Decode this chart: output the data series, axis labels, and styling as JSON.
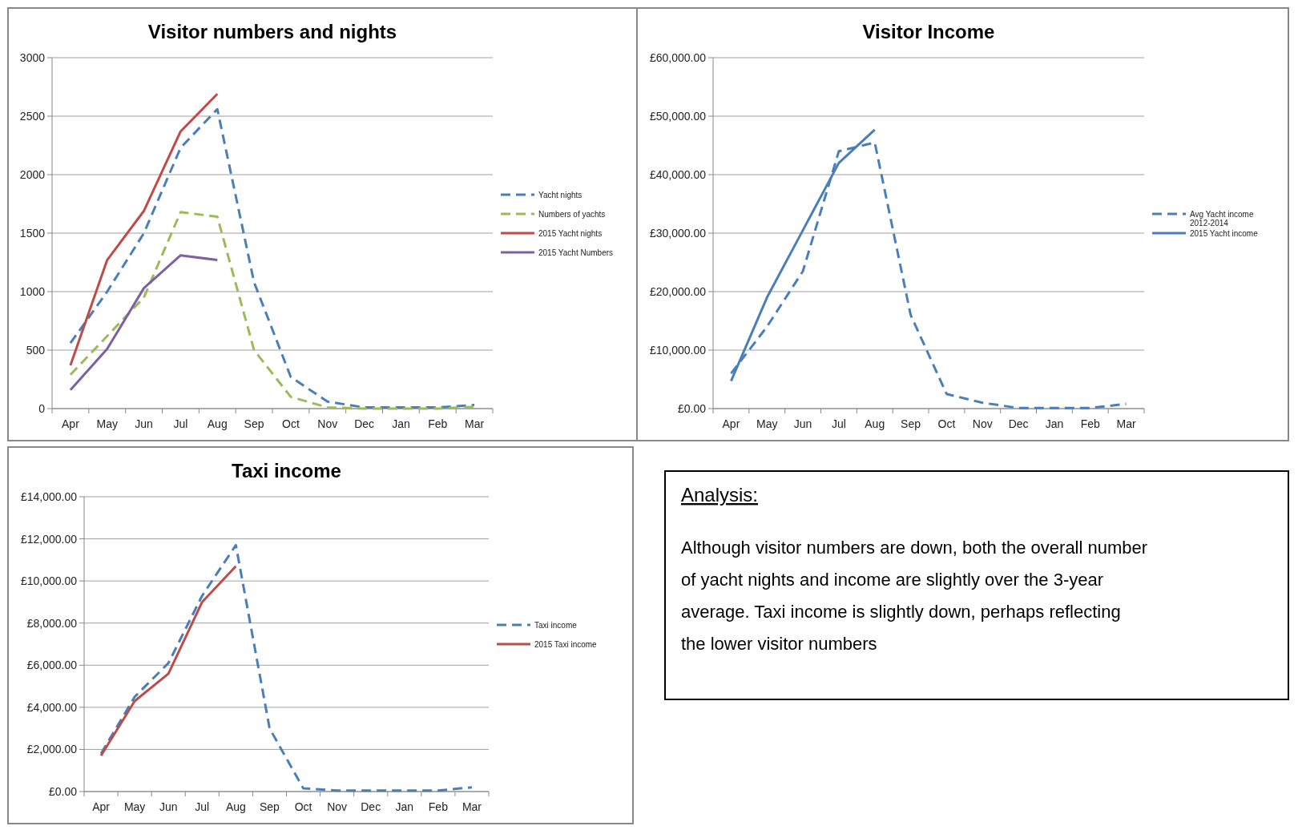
{
  "chart_data": [
    {
      "type": "line",
      "title": "Visitor numbers and nights",
      "categories": [
        "Apr",
        "May",
        "Jun",
        "Jul",
        "Aug",
        "Sep",
        "Oct",
        "Nov",
        "Dec",
        "Jan",
        "Feb",
        "Mar"
      ],
      "ylim": [
        0,
        3000
      ],
      "yticks": [
        0,
        500,
        1000,
        1500,
        2000,
        2500,
        3000
      ],
      "grid": "y",
      "legend": "right",
      "marker": "none",
      "series": [
        {
          "name": "Yacht nights",
          "color": "#4a7ebb",
          "line_style": "dashed",
          "values": [
            560,
            1000,
            1500,
            2230,
            2560,
            1080,
            270,
            60,
            10,
            10,
            10,
            30
          ]
        },
        {
          "name": "Numbers of yachts",
          "color": "#9bbb59",
          "line_style": "dashed",
          "values": [
            290,
            620,
            950,
            1680,
            1640,
            500,
            100,
            10,
            0,
            0,
            0,
            15
          ]
        },
        {
          "name": "2015 Yacht nights",
          "color": "#be4b48",
          "line_style": "solid",
          "values": [
            370,
            1270,
            1690,
            2370,
            2690,
            null,
            null,
            null,
            null,
            null,
            null,
            null
          ]
        },
        {
          "name": "2015 Yacht Numbers",
          "color": "#7d60a0",
          "line_style": "solid",
          "values": [
            160,
            510,
            1030,
            1310,
            1270,
            null,
            null,
            null,
            null,
            null,
            null,
            null
          ]
        }
      ]
    },
    {
      "type": "line",
      "title": "Visitor Income",
      "categories": [
        "Apr",
        "May",
        "Jun",
        "Jul",
        "Aug",
        "Sep",
        "Oct",
        "Nov",
        "Dec",
        "Jan",
        "Feb",
        "Mar"
      ],
      "ylim": [
        0,
        60000
      ],
      "yticks": [
        {
          "value": 0,
          "label": "£0.00"
        },
        {
          "value": 10000,
          "label": "£10,000.00"
        },
        {
          "value": 20000,
          "label": "£20,000.00"
        },
        {
          "value": 30000,
          "label": "£30,000.00"
        },
        {
          "value": 40000,
          "label": "£40,000.00"
        },
        {
          "value": 50000,
          "label": "£50,000.00"
        },
        {
          "value": 60000,
          "label": "£60,000.00"
        }
      ],
      "grid": "y",
      "legend": "right",
      "marker": "none",
      "series": [
        {
          "name": "Avg Yacht income 2012-2014",
          "color": "#4a7ebb",
          "line_style": "dashed",
          "values": [
            6000,
            14000,
            23500,
            44000,
            45500,
            16000,
            2500,
            1000,
            100,
            100,
            100,
            800
          ]
        },
        {
          "name": "2015 Yacht income",
          "color": "#4a7ebb",
          "line_style": "solid",
          "values": [
            4700,
            19000,
            30500,
            42000,
            47700,
            null,
            null,
            null,
            null,
            null,
            null,
            null
          ]
        }
      ]
    },
    {
      "type": "line",
      "title": "Taxi income",
      "categories": [
        "Apr",
        "May",
        "Jun",
        "Jul",
        "Aug",
        "Sep",
        "Oct",
        "Nov",
        "Dec",
        "Jan",
        "Feb",
        "Mar"
      ],
      "ylim": [
        0,
        14000
      ],
      "yticks": [
        {
          "value": 0,
          "label": "£0.00"
        },
        {
          "value": 2000,
          "label": "£2,000.00"
        },
        {
          "value": 4000,
          "label": "£4,000.00"
        },
        {
          "value": 6000,
          "label": "£6,000.00"
        },
        {
          "value": 8000,
          "label": "£8,000.00"
        },
        {
          "value": 10000,
          "label": "£10,000.00"
        },
        {
          "value": 12000,
          "label": "£12,000.00"
        },
        {
          "value": 14000,
          "label": "£14,000.00"
        }
      ],
      "grid": "y",
      "legend": "right",
      "marker": "none",
      "series": [
        {
          "name": "Taxi income",
          "color": "#4a7ebb",
          "line_style": "dashed",
          "values": [
            1800,
            4500,
            6100,
            9300,
            11700,
            3000,
            150,
            50,
            50,
            50,
            50,
            200
          ]
        },
        {
          "name": "2015 Taxi income",
          "color": "#be4b48",
          "line_style": "solid",
          "values": [
            1700,
            4300,
            5600,
            9000,
            10700,
            null,
            null,
            null,
            null,
            null,
            null,
            null
          ]
        }
      ]
    },
    {
      "type": "other",
      "title": "Analysis:",
      "annotations": [
        "Although visitor numbers are down, both the overall number of yacht nights and income are slightly over the 3-year average. Taxi income is slightly down, perhaps reflecting the lower visitor numbers"
      ]
    }
  ]
}
